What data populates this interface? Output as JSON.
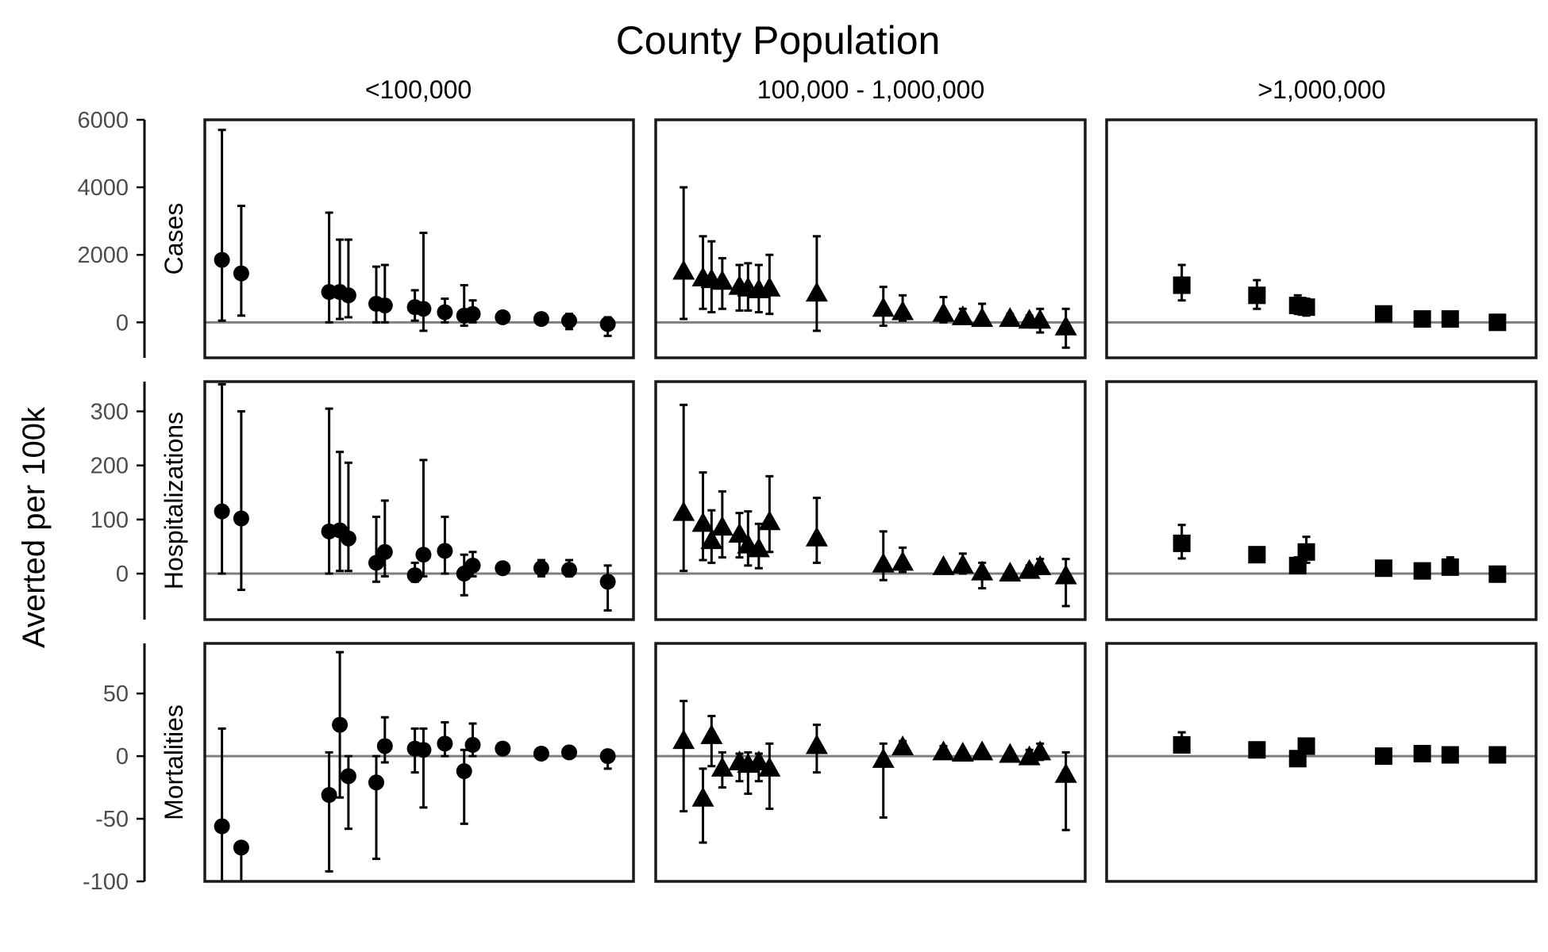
{
  "chart_data": {
    "type": "scatter",
    "title": "County Population",
    "ylabel": "Averted per 100k",
    "xlabel": "",
    "grid": false,
    "legend": "none",
    "columns": [
      "<100,000",
      "100,000 - 1,000,000",
      ">1,000,000"
    ],
    "rows": [
      {
        "label": "Cases",
        "ylim": [
          -1050,
          6000
        ],
        "yticks": [
          0,
          2000,
          4000,
          6000
        ],
        "tick_labels": [
          "0",
          "2000",
          "4000",
          "6000"
        ]
      },
      {
        "label": "Hospitalizations",
        "ylim": [
          -85,
          355
        ],
        "yticks": [
          0,
          100,
          200,
          300
        ],
        "tick_labels": [
          "0",
          "100",
          "200",
          "300"
        ]
      },
      {
        "label": "Mortalities",
        "ylim": [
          -100,
          90
        ],
        "yticks": [
          -100,
          -50,
          0,
          50
        ],
        "tick_labels": [
          "-100",
          "-50",
          "0",
          "50"
        ]
      }
    ],
    "marker_shapes": [
      "circle",
      "triangle",
      "square"
    ],
    "reference_line": 0,
    "panels": [
      {
        "row": 0,
        "col": 0,
        "points": [
          {
            "x": 0.04,
            "y": 1850,
            "lo": 50,
            "hi": 5700
          },
          {
            "x": 0.085,
            "y": 1450,
            "lo": 200,
            "hi": 3450
          },
          {
            "x": 0.29,
            "y": 900,
            "lo": 0,
            "hi": 3250
          },
          {
            "x": 0.315,
            "y": 900,
            "lo": 100,
            "hi": 2450
          },
          {
            "x": 0.335,
            "y": 800,
            "lo": 150,
            "hi": 2450
          },
          {
            "x": 0.4,
            "y": 550,
            "lo": 0,
            "hi": 1650
          },
          {
            "x": 0.42,
            "y": 500,
            "lo": 0,
            "hi": 1700
          },
          {
            "x": 0.49,
            "y": 450,
            "lo": 50,
            "hi": 950
          },
          {
            "x": 0.51,
            "y": 400,
            "lo": -250,
            "hi": 2650
          },
          {
            "x": 0.56,
            "y": 300,
            "lo": 0,
            "hi": 700
          },
          {
            "x": 0.605,
            "y": 200,
            "lo": -100,
            "hi": 1100
          },
          {
            "x": 0.625,
            "y": 250,
            "lo": 0,
            "hi": 650
          },
          {
            "x": 0.695,
            "y": 150,
            "lo": 0,
            "hi": 300
          },
          {
            "x": 0.785,
            "y": 100,
            "lo": 0,
            "hi": 200
          },
          {
            "x": 0.85,
            "y": 50,
            "lo": -200,
            "hi": 250
          },
          {
            "x": 0.94,
            "y": -50,
            "lo": -400,
            "hi": 150
          }
        ]
      },
      {
        "row": 1,
        "col": 0,
        "points": [
          {
            "x": 0.04,
            "y": 115,
            "lo": 0,
            "hi": 350
          },
          {
            "x": 0.085,
            "y": 102,
            "lo": -30,
            "hi": 300
          },
          {
            "x": 0.29,
            "y": 78,
            "lo": 0,
            "hi": 305
          },
          {
            "x": 0.315,
            "y": 80,
            "lo": 5,
            "hi": 225
          },
          {
            "x": 0.335,
            "y": 65,
            "lo": 5,
            "hi": 205
          },
          {
            "x": 0.4,
            "y": 20,
            "lo": -15,
            "hi": 105
          },
          {
            "x": 0.42,
            "y": 40,
            "lo": -5,
            "hi": 135
          },
          {
            "x": 0.49,
            "y": -3,
            "lo": -15,
            "hi": 20
          },
          {
            "x": 0.51,
            "y": 35,
            "lo": -5,
            "hi": 210
          },
          {
            "x": 0.56,
            "y": 42,
            "lo": 0,
            "hi": 105
          },
          {
            "x": 0.605,
            "y": 0,
            "lo": -40,
            "hi": 35
          },
          {
            "x": 0.625,
            "y": 15,
            "lo": -5,
            "hi": 40
          },
          {
            "x": 0.695,
            "y": 10,
            "lo": 5,
            "hi": 15
          },
          {
            "x": 0.785,
            "y": 10,
            "lo": -5,
            "hi": 25
          },
          {
            "x": 0.85,
            "y": 7,
            "lo": -5,
            "hi": 25
          },
          {
            "x": 0.94,
            "y": -15,
            "lo": -68,
            "hi": 15
          }
        ]
      },
      {
        "row": 2,
        "col": 0,
        "points": [
          {
            "x": 0.04,
            "y": -56,
            "lo": -100,
            "hi": 22
          },
          {
            "x": 0.085,
            "y": -73,
            "lo": -100,
            "hi": -73
          },
          {
            "x": 0.29,
            "y": -31,
            "lo": -92,
            "hi": 3
          },
          {
            "x": 0.315,
            "y": 25,
            "lo": -33,
            "hi": 83
          },
          {
            "x": 0.335,
            "y": -16,
            "lo": -58,
            "hi": 0
          },
          {
            "x": 0.4,
            "y": -21,
            "lo": -82,
            "hi": 0
          },
          {
            "x": 0.42,
            "y": 8,
            "lo": -5,
            "hi": 31
          },
          {
            "x": 0.49,
            "y": 6,
            "lo": -13,
            "hi": 22
          },
          {
            "x": 0.51,
            "y": 5,
            "lo": -41,
            "hi": 22
          },
          {
            "x": 0.56,
            "y": 10,
            "lo": 0,
            "hi": 27
          },
          {
            "x": 0.605,
            "y": -12,
            "lo": -54,
            "hi": 5
          },
          {
            "x": 0.625,
            "y": 9,
            "lo": 0,
            "hi": 26
          },
          {
            "x": 0.695,
            "y": 6,
            "lo": 3,
            "hi": 10
          },
          {
            "x": 0.785,
            "y": 2,
            "lo": 0,
            "hi": 3
          },
          {
            "x": 0.85,
            "y": 3,
            "lo": 1,
            "hi": 4
          },
          {
            "x": 0.94,
            "y": 0,
            "lo": -10,
            "hi": 4
          }
        ]
      },
      {
        "row": 0,
        "col": 1,
        "points": [
          {
            "x": 0.065,
            "y": 1500,
            "lo": 100,
            "hi": 4000
          },
          {
            "x": 0.11,
            "y": 1300,
            "lo": 400,
            "hi": 2550
          },
          {
            "x": 0.13,
            "y": 1250,
            "lo": 300,
            "hi": 2400
          },
          {
            "x": 0.155,
            "y": 1200,
            "lo": 400,
            "hi": 1900
          },
          {
            "x": 0.195,
            "y": 1050,
            "lo": 350,
            "hi": 1700
          },
          {
            "x": 0.215,
            "y": 1000,
            "lo": 350,
            "hi": 1750
          },
          {
            "x": 0.24,
            "y": 950,
            "lo": 300,
            "hi": 1700
          },
          {
            "x": 0.265,
            "y": 1000,
            "lo": 250,
            "hi": 2000
          },
          {
            "x": 0.375,
            "y": 850,
            "lo": -250,
            "hi": 2550
          },
          {
            "x": 0.53,
            "y": 400,
            "lo": -100,
            "hi": 1050
          },
          {
            "x": 0.575,
            "y": 300,
            "lo": 50,
            "hi": 800
          },
          {
            "x": 0.67,
            "y": 250,
            "lo": 0,
            "hi": 750
          },
          {
            "x": 0.715,
            "y": 150,
            "lo": 0,
            "hi": 400
          },
          {
            "x": 0.76,
            "y": 100,
            "lo": 0,
            "hi": 550
          },
          {
            "x": 0.825,
            "y": 100,
            "lo": 0,
            "hi": 250
          },
          {
            "x": 0.87,
            "y": 50,
            "lo": -100,
            "hi": 200
          },
          {
            "x": 0.895,
            "y": 50,
            "lo": -300,
            "hi": 400
          },
          {
            "x": 0.955,
            "y": -150,
            "lo": -750,
            "hi": 400
          }
        ]
      },
      {
        "row": 1,
        "col": 1,
        "points": [
          {
            "x": 0.065,
            "y": 112,
            "lo": 5,
            "hi": 312
          },
          {
            "x": 0.11,
            "y": 92,
            "lo": 25,
            "hi": 187
          },
          {
            "x": 0.13,
            "y": 60,
            "lo": 20,
            "hi": 117
          },
          {
            "x": 0.155,
            "y": 85,
            "lo": 30,
            "hi": 152
          },
          {
            "x": 0.195,
            "y": 72,
            "lo": 30,
            "hi": 112
          },
          {
            "x": 0.215,
            "y": 52,
            "lo": 15,
            "hi": 115
          },
          {
            "x": 0.24,
            "y": 45,
            "lo": 10,
            "hi": 92
          },
          {
            "x": 0.265,
            "y": 95,
            "lo": 40,
            "hi": 180
          },
          {
            "x": 0.375,
            "y": 65,
            "lo": 20,
            "hi": 140
          },
          {
            "x": 0.53,
            "y": 17,
            "lo": -12,
            "hi": 78
          },
          {
            "x": 0.575,
            "y": 20,
            "lo": 3,
            "hi": 48
          },
          {
            "x": 0.67,
            "y": 12,
            "lo": 2,
            "hi": 20
          },
          {
            "x": 0.715,
            "y": 15,
            "lo": 0,
            "hi": 37
          },
          {
            "x": 0.76,
            "y": 2,
            "lo": -27,
            "hi": 20
          },
          {
            "x": 0.825,
            "y": 0,
            "lo": -5,
            "hi": 5
          },
          {
            "x": 0.87,
            "y": 5,
            "lo": -3,
            "hi": 15
          },
          {
            "x": 0.895,
            "y": 12,
            "lo": 0,
            "hi": 27
          },
          {
            "x": 0.955,
            "y": -5,
            "lo": -60,
            "hi": 27
          }
        ]
      },
      {
        "row": 2,
        "col": 1,
        "points": [
          {
            "x": 0.065,
            "y": 12,
            "lo": -44,
            "hi": 44
          },
          {
            "x": 0.11,
            "y": -34,
            "lo": -69,
            "hi": -10
          },
          {
            "x": 0.13,
            "y": 16,
            "lo": -8,
            "hi": 32
          },
          {
            "x": 0.155,
            "y": -10,
            "lo": -25,
            "hi": 3
          },
          {
            "x": 0.195,
            "y": -5,
            "lo": -20,
            "hi": 2
          },
          {
            "x": 0.215,
            "y": -7,
            "lo": -30,
            "hi": 3
          },
          {
            "x": 0.24,
            "y": -5,
            "lo": -20,
            "hi": 2
          },
          {
            "x": 0.265,
            "y": -10,
            "lo": -42,
            "hi": 10
          },
          {
            "x": 0.375,
            "y": 8,
            "lo": -13,
            "hi": 25
          },
          {
            "x": 0.53,
            "y": -3,
            "lo": -49,
            "hi": 10
          },
          {
            "x": 0.575,
            "y": 7,
            "lo": 2,
            "hi": 12
          },
          {
            "x": 0.67,
            "y": 3,
            "lo": 0,
            "hi": 8
          },
          {
            "x": 0.715,
            "y": 2,
            "lo": 0,
            "hi": 4
          },
          {
            "x": 0.76,
            "y": 3,
            "lo": 0,
            "hi": 5
          },
          {
            "x": 0.825,
            "y": 1,
            "lo": 0,
            "hi": 3
          },
          {
            "x": 0.87,
            "y": -1,
            "lo": -5,
            "hi": 5
          },
          {
            "x": 0.895,
            "y": 3,
            "lo": -3,
            "hi": 10
          },
          {
            "x": 0.955,
            "y": -15,
            "lo": -59,
            "hi": 3
          }
        ]
      },
      {
        "row": 0,
        "col": 2,
        "points": [
          {
            "x": 0.175,
            "y": 1100,
            "lo": 650,
            "hi": 1700
          },
          {
            "x": 0.35,
            "y": 800,
            "lo": 400,
            "hi": 1250
          },
          {
            "x": 0.445,
            "y": 500,
            "lo": 250,
            "hi": 800
          },
          {
            "x": 0.465,
            "y": 450,
            "lo": 200,
            "hi": 700
          },
          {
            "x": 0.645,
            "y": 250,
            "lo": 100,
            "hi": 350
          },
          {
            "x": 0.735,
            "y": 100,
            "lo": 50,
            "hi": 150
          },
          {
            "x": 0.8,
            "y": 100,
            "lo": 50,
            "hi": 150
          },
          {
            "x": 0.91,
            "y": 0,
            "lo": -50,
            "hi": 50
          }
        ]
      },
      {
        "row": 1,
        "col": 2,
        "points": [
          {
            "x": 0.175,
            "y": 56,
            "lo": 28,
            "hi": 90
          },
          {
            "x": 0.35,
            "y": 35,
            "lo": 22,
            "hi": 48
          },
          {
            "x": 0.445,
            "y": 15,
            "lo": 5,
            "hi": 30
          },
          {
            "x": 0.465,
            "y": 40,
            "lo": 20,
            "hi": 68
          },
          {
            "x": 0.645,
            "y": 10,
            "lo": 3,
            "hi": 20
          },
          {
            "x": 0.735,
            "y": 5,
            "lo": 2,
            "hi": 8
          },
          {
            "x": 0.8,
            "y": 12,
            "lo": 3,
            "hi": 30
          },
          {
            "x": 0.91,
            "y": -1,
            "lo": -5,
            "hi": 3
          }
        ]
      },
      {
        "row": 2,
        "col": 2,
        "points": [
          {
            "x": 0.175,
            "y": 9,
            "lo": 3,
            "hi": 19
          },
          {
            "x": 0.35,
            "y": 5,
            "lo": 3,
            "hi": 7
          },
          {
            "x": 0.445,
            "y": -2,
            "lo": -5,
            "hi": 2
          },
          {
            "x": 0.465,
            "y": 8,
            "lo": 4,
            "hi": 12
          },
          {
            "x": 0.645,
            "y": 0,
            "lo": -2,
            "hi": 2
          },
          {
            "x": 0.735,
            "y": 2,
            "lo": 0,
            "hi": 4
          },
          {
            "x": 0.8,
            "y": 1,
            "lo": -1,
            "hi": 3
          },
          {
            "x": 0.91,
            "y": 1,
            "lo": -1,
            "hi": 3
          }
        ]
      }
    ]
  }
}
